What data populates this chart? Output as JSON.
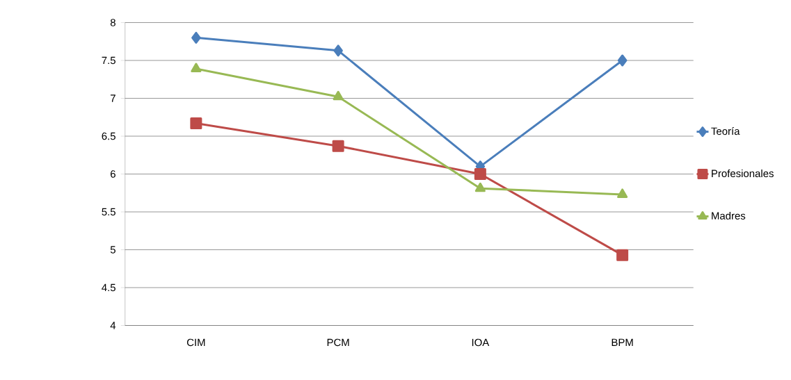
{
  "chart_data": {
    "type": "line",
    "categories": [
      "CIM",
      "PCM",
      "IOA",
      "BPM"
    ],
    "series": [
      {
        "name": "Teoría",
        "color": "#4a7ebb",
        "marker": "diamond",
        "values": [
          7.8,
          7.63,
          6.1,
          7.5
        ]
      },
      {
        "name": "Profesionales",
        "color": "#be4b48",
        "marker": "square",
        "values": [
          6.67,
          6.37,
          6.0,
          4.93
        ]
      },
      {
        "name": "Madres",
        "color": "#98b954",
        "marker": "triangle",
        "values": [
          7.39,
          7.02,
          5.81,
          5.73
        ]
      }
    ],
    "ylim": [
      4,
      8
    ],
    "yticks": [
      4,
      4.5,
      5,
      5.5,
      6,
      6.5,
      7,
      7.5,
      8
    ],
    "grid": "y",
    "legend": "right",
    "line_style": "solid"
  }
}
